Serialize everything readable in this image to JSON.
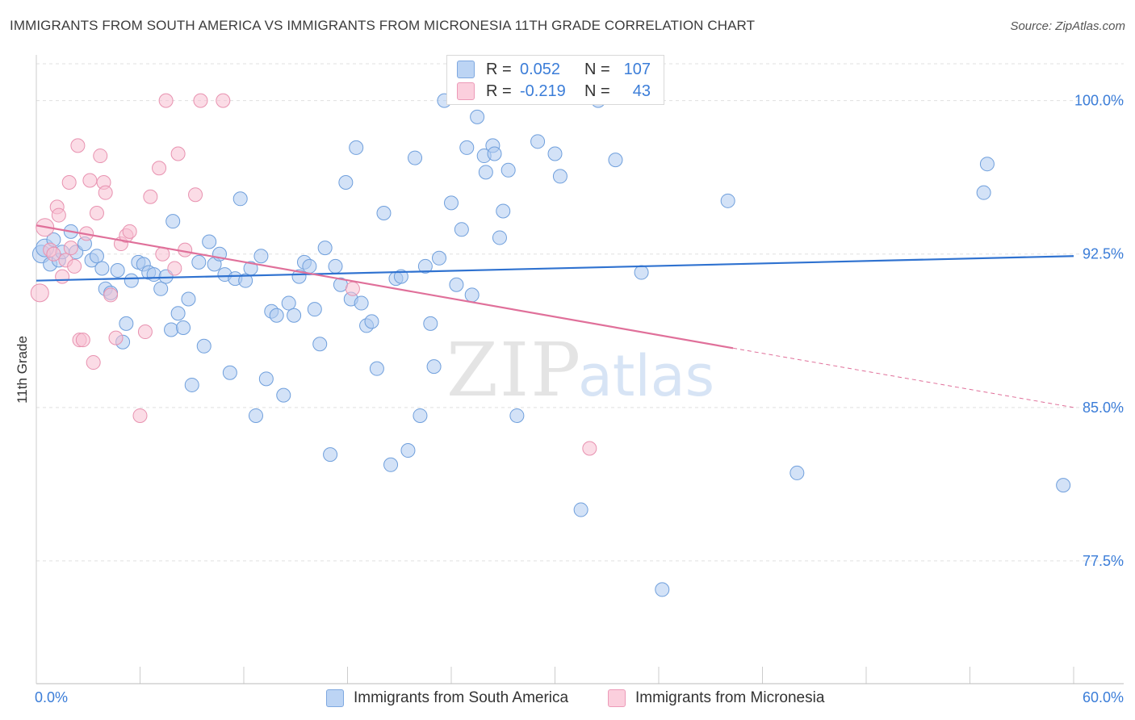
{
  "title": "IMMIGRANTS FROM SOUTH AMERICA VS IMMIGRANTS FROM MICRONESIA 11TH GRADE CORRELATION CHART",
  "source": "Source: ZipAtlas.com",
  "watermark": {
    "zip": "ZIP",
    "atlas": "atlas"
  },
  "colors": {
    "blue_fill": "#aecbf0",
    "blue_stroke": "#6f9fdc",
    "blue_line": "#2f72d0",
    "pink_fill": "#f8c0d2",
    "pink_stroke": "#e892b0",
    "pink_line": "#e0709a",
    "axis_label": "#3b7dd8",
    "grid": "#e0e0e0"
  },
  "legend": {
    "rows": [
      {
        "r_label": "R =",
        "r_value": "0.052",
        "n_label": "N =",
        "n_value": "107"
      },
      {
        "r_label": "R =",
        "r_value": "-0.219",
        "n_label": "N =",
        "n_value": "43"
      }
    ]
  },
  "chart_data": {
    "type": "scatter",
    "xlabel": "",
    "ylabel": "11th Grade",
    "xlim": [
      0,
      60
    ],
    "ylim": [
      71.5,
      101.8
    ],
    "x_tick_labels": {
      "left": "0.0%",
      "right": "60.0%"
    },
    "y_ticks": [
      100.0,
      92.5,
      85.0,
      77.5
    ],
    "y_tick_labels": [
      "100.0%",
      "92.5%",
      "85.0%",
      "77.5%"
    ],
    "series": [
      {
        "name": "Immigrants from South America",
        "color": "#6f9fdc",
        "trend": {
          "x": [
            0,
            60
          ],
          "y": [
            91.2,
            92.4
          ]
        },
        "points": [
          [
            0.3,
            92.5
          ],
          [
            0.5,
            92.8
          ],
          [
            0.8,
            92.0
          ],
          [
            1.0,
            93.2
          ],
          [
            1.3,
            92.2
          ],
          [
            1.5,
            92.6
          ],
          [
            2.0,
            93.6
          ],
          [
            2.3,
            92.6
          ],
          [
            2.8,
            93.0
          ],
          [
            3.2,
            92.2
          ],
          [
            3.5,
            92.4
          ],
          [
            3.8,
            91.8
          ],
          [
            4.0,
            90.8
          ],
          [
            4.3,
            90.6
          ],
          [
            4.7,
            91.7
          ],
          [
            5.0,
            88.2
          ],
          [
            5.2,
            89.1
          ],
          [
            5.5,
            91.2
          ],
          [
            5.9,
            92.1
          ],
          [
            6.2,
            92.0
          ],
          [
            6.5,
            91.6
          ],
          [
            6.8,
            91.5
          ],
          [
            7.2,
            90.8
          ],
          [
            7.5,
            91.4
          ],
          [
            7.8,
            88.8
          ],
          [
            7.9,
            94.1
          ],
          [
            8.2,
            89.6
          ],
          [
            8.5,
            88.9
          ],
          [
            8.8,
            90.3
          ],
          [
            9.0,
            86.1
          ],
          [
            9.4,
            92.1
          ],
          [
            9.7,
            88.0
          ],
          [
            10.0,
            93.1
          ],
          [
            10.3,
            92.0
          ],
          [
            10.6,
            92.5
          ],
          [
            10.9,
            91.5
          ],
          [
            11.2,
            86.7
          ],
          [
            11.5,
            91.3
          ],
          [
            11.8,
            95.2
          ],
          [
            12.1,
            91.2
          ],
          [
            12.4,
            91.8
          ],
          [
            12.7,
            84.6
          ],
          [
            13.0,
            92.4
          ],
          [
            13.3,
            86.4
          ],
          [
            13.6,
            89.7
          ],
          [
            13.9,
            89.5
          ],
          [
            14.3,
            85.6
          ],
          [
            14.6,
            90.1
          ],
          [
            14.9,
            89.5
          ],
          [
            15.2,
            91.4
          ],
          [
            15.5,
            92.1
          ],
          [
            15.8,
            91.9
          ],
          [
            16.1,
            89.8
          ],
          [
            16.4,
            88.1
          ],
          [
            16.7,
            92.8
          ],
          [
            17.0,
            82.7
          ],
          [
            17.3,
            91.9
          ],
          [
            17.6,
            91.0
          ],
          [
            17.9,
            96.0
          ],
          [
            18.2,
            90.3
          ],
          [
            18.5,
            97.7
          ],
          [
            18.8,
            90.1
          ],
          [
            19.1,
            89.0
          ],
          [
            19.4,
            89.2
          ],
          [
            19.7,
            86.9
          ],
          [
            20.1,
            94.5
          ],
          [
            20.5,
            82.2
          ],
          [
            20.8,
            91.3
          ],
          [
            21.1,
            91.4
          ],
          [
            21.5,
            82.9
          ],
          [
            21.9,
            97.2
          ],
          [
            22.2,
            84.6
          ],
          [
            22.5,
            91.9
          ],
          [
            22.8,
            89.1
          ],
          [
            23.0,
            87.0
          ],
          [
            23.3,
            92.3
          ],
          [
            23.6,
            100.0
          ],
          [
            24.0,
            95.0
          ],
          [
            24.3,
            91.0
          ],
          [
            24.6,
            93.7
          ],
          [
            24.9,
            97.7
          ],
          [
            25.2,
            90.5
          ],
          [
            25.5,
            99.2
          ],
          [
            25.9,
            97.3
          ],
          [
            26.0,
            96.5
          ],
          [
            26.4,
            97.8
          ],
          [
            26.5,
            97.4
          ],
          [
            26.8,
            93.3
          ],
          [
            27.0,
            94.6
          ],
          [
            27.3,
            96.6
          ],
          [
            27.8,
            84.6
          ],
          [
            29.0,
            98.0
          ],
          [
            30.0,
            97.4
          ],
          [
            30.3,
            96.3
          ],
          [
            31.5,
            80.0
          ],
          [
            32.5,
            100.0
          ],
          [
            33.5,
            97.1
          ],
          [
            35.0,
            91.6
          ],
          [
            36.2,
            76.1
          ],
          [
            40.0,
            95.1
          ],
          [
            44.0,
            81.8
          ],
          [
            54.8,
            95.5
          ],
          [
            55.0,
            96.9
          ],
          [
            59.4,
            81.2
          ]
        ]
      },
      {
        "name": "Immigrants from Micronesia",
        "color": "#e892b0",
        "trend": {
          "x": [
            0,
            40.3,
            60
          ],
          "y": [
            93.9,
            87.9,
            85.0
          ]
        },
        "points": [
          [
            0.2,
            90.6
          ],
          [
            0.5,
            93.8
          ],
          [
            0.8,
            92.7
          ],
          [
            1.0,
            92.5
          ],
          [
            1.2,
            94.8
          ],
          [
            1.3,
            94.4
          ],
          [
            1.5,
            91.4
          ],
          [
            1.7,
            92.2
          ],
          [
            1.9,
            96.0
          ],
          [
            2.0,
            92.8
          ],
          [
            2.2,
            91.9
          ],
          [
            2.4,
            97.8
          ],
          [
            2.5,
            88.3
          ],
          [
            2.7,
            88.3
          ],
          [
            2.9,
            93.5
          ],
          [
            3.1,
            96.1
          ],
          [
            3.3,
            87.2
          ],
          [
            3.5,
            94.5
          ],
          [
            3.7,
            97.3
          ],
          [
            3.9,
            96.0
          ],
          [
            4.0,
            95.5
          ],
          [
            4.3,
            90.5
          ],
          [
            4.6,
            88.4
          ],
          [
            4.9,
            93.0
          ],
          [
            5.2,
            93.4
          ],
          [
            5.4,
            93.6
          ],
          [
            6.0,
            84.6
          ],
          [
            6.3,
            88.7
          ],
          [
            6.6,
            95.3
          ],
          [
            7.1,
            96.7
          ],
          [
            7.3,
            92.5
          ],
          [
            7.5,
            100.0
          ],
          [
            8.0,
            91.8
          ],
          [
            8.2,
            97.4
          ],
          [
            8.6,
            92.7
          ],
          [
            9.2,
            95.4
          ],
          [
            9.5,
            100.0
          ],
          [
            10.8,
            100.0
          ],
          [
            18.3,
            90.8
          ],
          [
            32.0,
            83.0
          ]
        ]
      }
    ]
  },
  "bottom_legend": [
    "Immigrants from South America",
    "Immigrants from Micronesia"
  ]
}
